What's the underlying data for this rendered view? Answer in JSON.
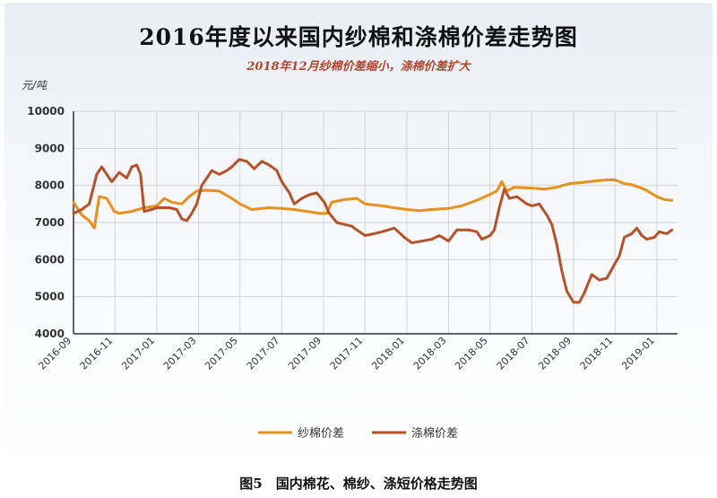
{
  "title": "2016年度以来国内纱棉和涤棉价差走势图",
  "subtitle": "2018年12月纱棉价差缩小，涤棉价差扩大",
  "unit_label": "元/吨",
  "caption": "图5　国内棉花、棉纱、涤短价格走势图",
  "colors": {
    "yarn_cotton": "#e8901c",
    "poly_cotton": "#b6522a",
    "axis": "#333333",
    "grid": "#d4d4d4"
  },
  "chart_data": {
    "type": "line",
    "ylim": [
      4000,
      10000
    ],
    "yticks": [
      "10000",
      "9000",
      "8000",
      "7000",
      "6000",
      "5000",
      "4000"
    ],
    "xlim": [
      2016.667,
      2019.083
    ],
    "xticks": [
      {
        "label": "2016-09",
        "t": 2016.667
      },
      {
        "label": "2016-11",
        "t": 2016.833
      },
      {
        "label": "2017-01",
        "t": 2017.0
      },
      {
        "label": "2017-03",
        "t": 2017.167
      },
      {
        "label": "2017-05",
        "t": 2017.333
      },
      {
        "label": "2017-07",
        "t": 2017.5
      },
      {
        "label": "2017-09",
        "t": 2017.667
      },
      {
        "label": "2017-11",
        "t": 2017.833
      },
      {
        "label": "2018-01",
        "t": 2018.0
      },
      {
        "label": "2018-03",
        "t": 2018.167
      },
      {
        "label": "2018-05",
        "t": 2018.333
      },
      {
        "label": "2018-07",
        "t": 2018.5
      },
      {
        "label": "2018-09",
        "t": 2018.667
      },
      {
        "label": "2018-11",
        "t": 2018.833
      },
      {
        "label": "2019-01",
        "t": 2019.0
      }
    ],
    "grid": true,
    "legend_position": "bottom",
    "series": [
      {
        "name": "纱棉价差",
        "color": "#e8901c",
        "points": [
          [
            2016.667,
            7550
          ],
          [
            2016.7,
            7200
          ],
          [
            2016.73,
            7050
          ],
          [
            2016.75,
            6850
          ],
          [
            2016.77,
            7700
          ],
          [
            2016.8,
            7650
          ],
          [
            2016.83,
            7300
          ],
          [
            2016.85,
            7250
          ],
          [
            2016.9,
            7300
          ],
          [
            2016.95,
            7400
          ],
          [
            2017.0,
            7450
          ],
          [
            2017.03,
            7650
          ],
          [
            2017.06,
            7550
          ],
          [
            2017.1,
            7500
          ],
          [
            2017.13,
            7700
          ],
          [
            2017.16,
            7850
          ],
          [
            2017.2,
            7870
          ],
          [
            2017.25,
            7850
          ],
          [
            2017.3,
            7650
          ],
          [
            2017.333,
            7500
          ],
          [
            2017.38,
            7350
          ],
          [
            2017.45,
            7400
          ],
          [
            2017.5,
            7380
          ],
          [
            2017.55,
            7350
          ],
          [
            2017.6,
            7300
          ],
          [
            2017.65,
            7250
          ],
          [
            2017.68,
            7250
          ],
          [
            2017.7,
            7550
          ],
          [
            2017.75,
            7620
          ],
          [
            2017.8,
            7650
          ],
          [
            2017.833,
            7500
          ],
          [
            2017.9,
            7450
          ],
          [
            2017.95,
            7400
          ],
          [
            2018.0,
            7350
          ],
          [
            2018.05,
            7320
          ],
          [
            2018.1,
            7350
          ],
          [
            2018.167,
            7380
          ],
          [
            2018.22,
            7450
          ],
          [
            2018.28,
            7600
          ],
          [
            2018.33,
            7750
          ],
          [
            2018.36,
            7850
          ],
          [
            2018.38,
            8100
          ],
          [
            2018.4,
            7850
          ],
          [
            2018.43,
            7950
          ],
          [
            2018.5,
            7930
          ],
          [
            2018.55,
            7900
          ],
          [
            2018.6,
            7950
          ],
          [
            2018.65,
            8050
          ],
          [
            2018.7,
            8080
          ],
          [
            2018.75,
            8120
          ],
          [
            2018.8,
            8150
          ],
          [
            2018.833,
            8150
          ],
          [
            2018.87,
            8050
          ],
          [
            2018.9,
            8020
          ],
          [
            2018.95,
            7900
          ],
          [
            2019.0,
            7700
          ],
          [
            2019.03,
            7620
          ],
          [
            2019.06,
            7600
          ]
        ]
      },
      {
        "name": "涤棉价差",
        "color": "#b6522a",
        "points": [
          [
            2016.667,
            7250
          ],
          [
            2016.7,
            7350
          ],
          [
            2016.73,
            7500
          ],
          [
            2016.76,
            8300
          ],
          [
            2016.78,
            8500
          ],
          [
            2016.8,
            8300
          ],
          [
            2016.82,
            8100
          ],
          [
            2016.85,
            8350
          ],
          [
            2016.88,
            8200
          ],
          [
            2016.9,
            8500
          ],
          [
            2016.92,
            8550
          ],
          [
            2016.935,
            8300
          ],
          [
            2016.95,
            7300
          ],
          [
            2016.98,
            7350
          ],
          [
            2017.0,
            7400
          ],
          [
            2017.05,
            7400
          ],
          [
            2017.08,
            7350
          ],
          [
            2017.1,
            7100
          ],
          [
            2017.12,
            7050
          ],
          [
            2017.14,
            7250
          ],
          [
            2017.16,
            7500
          ],
          [
            2017.18,
            8000
          ],
          [
            2017.22,
            8400
          ],
          [
            2017.25,
            8300
          ],
          [
            2017.28,
            8400
          ],
          [
            2017.3,
            8500
          ],
          [
            2017.33,
            8700
          ],
          [
            2017.36,
            8650
          ],
          [
            2017.39,
            8450
          ],
          [
            2017.42,
            8650
          ],
          [
            2017.45,
            8550
          ],
          [
            2017.48,
            8400
          ],
          [
            2017.5,
            8100
          ],
          [
            2017.53,
            7800
          ],
          [
            2017.55,
            7500
          ],
          [
            2017.58,
            7650
          ],
          [
            2017.61,
            7750
          ],
          [
            2017.64,
            7800
          ],
          [
            2017.67,
            7550
          ],
          [
            2017.69,
            7250
          ],
          [
            2017.72,
            7000
          ],
          [
            2017.75,
            6950
          ],
          [
            2017.78,
            6900
          ],
          [
            2017.8,
            6800
          ],
          [
            2017.833,
            6650
          ],
          [
            2017.87,
            6700
          ],
          [
            2017.9,
            6750
          ],
          [
            2017.95,
            6850
          ],
          [
            2017.99,
            6600
          ],
          [
            2018.02,
            6450
          ],
          [
            2018.06,
            6500
          ],
          [
            2018.1,
            6550
          ],
          [
            2018.13,
            6650
          ],
          [
            2018.167,
            6500
          ],
          [
            2018.2,
            6800
          ],
          [
            2018.25,
            6800
          ],
          [
            2018.28,
            6750
          ],
          [
            2018.3,
            6550
          ],
          [
            2018.333,
            6650
          ],
          [
            2018.35,
            6800
          ],
          [
            2018.37,
            7400
          ],
          [
            2018.39,
            7900
          ],
          [
            2018.41,
            7650
          ],
          [
            2018.44,
            7700
          ],
          [
            2018.48,
            7500
          ],
          [
            2018.5,
            7450
          ],
          [
            2018.53,
            7500
          ],
          [
            2018.56,
            7200
          ],
          [
            2018.58,
            6950
          ],
          [
            2018.6,
            6400
          ],
          [
            2018.62,
            5700
          ],
          [
            2018.64,
            5150
          ],
          [
            2018.667,
            4850
          ],
          [
            2018.69,
            4850
          ],
          [
            2018.71,
            5100
          ],
          [
            2018.74,
            5600
          ],
          [
            2018.77,
            5450
          ],
          [
            2018.8,
            5500
          ],
          [
            2018.833,
            5900
          ],
          [
            2018.85,
            6100
          ],
          [
            2018.87,
            6600
          ],
          [
            2018.9,
            6700
          ],
          [
            2018.92,
            6850
          ],
          [
            2018.94,
            6650
          ],
          [
            2018.96,
            6550
          ],
          [
            2018.99,
            6600
          ],
          [
            2019.01,
            6750
          ],
          [
            2019.04,
            6700
          ],
          [
            2019.06,
            6800
          ]
        ]
      }
    ]
  }
}
